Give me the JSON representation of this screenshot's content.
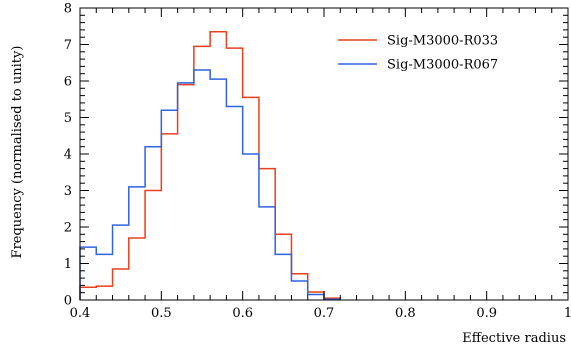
{
  "chart_data": {
    "type": "line",
    "style": "histogram-step",
    "title": "",
    "xlabel": "Effective radius",
    "ylabel": "Frequency (normalised to unity)",
    "xlim": [
      0.4,
      1.0
    ],
    "ylim": [
      0,
      8
    ],
    "x_major_ticks": [
      0.4,
      0.5,
      0.6,
      0.7,
      0.8,
      0.9,
      1
    ],
    "x_tick_labels": [
      "0.4",
      "0.5",
      "0.6",
      "0.7",
      "0.8",
      "0.9",
      "1"
    ],
    "y_major_ticks": [
      0,
      1,
      2,
      3,
      4,
      5,
      6,
      7,
      8
    ],
    "y_tick_labels": [
      "0",
      "1",
      "2",
      "3",
      "4",
      "5",
      "6",
      "7",
      "8"
    ],
    "grid": false,
    "legend_position": "top-right",
    "bin_edges": [
      0.4,
      0.42,
      0.44,
      0.46,
      0.48,
      0.5,
      0.52,
      0.54,
      0.56,
      0.58,
      0.6,
      0.62,
      0.64,
      0.66,
      0.68,
      0.7,
      0.72
    ],
    "series": [
      {
        "name": "Sig-M3000-R033",
        "color": "#e8401c",
        "values": [
          0.35,
          0.38,
          0.85,
          1.7,
          3.0,
          4.55,
          5.9,
          6.95,
          7.35,
          6.9,
          5.55,
          3.6,
          1.8,
          0.72,
          0.22,
          0.05
        ]
      },
      {
        "name": "Sig-M3000-R067",
        "color": "#2f64e0",
        "values": [
          1.45,
          1.25,
          2.05,
          3.1,
          4.2,
          5.2,
          5.95,
          6.3,
          6.05,
          5.3,
          4.0,
          2.55,
          1.25,
          0.52,
          0.15,
          0.02
        ]
      }
    ]
  }
}
